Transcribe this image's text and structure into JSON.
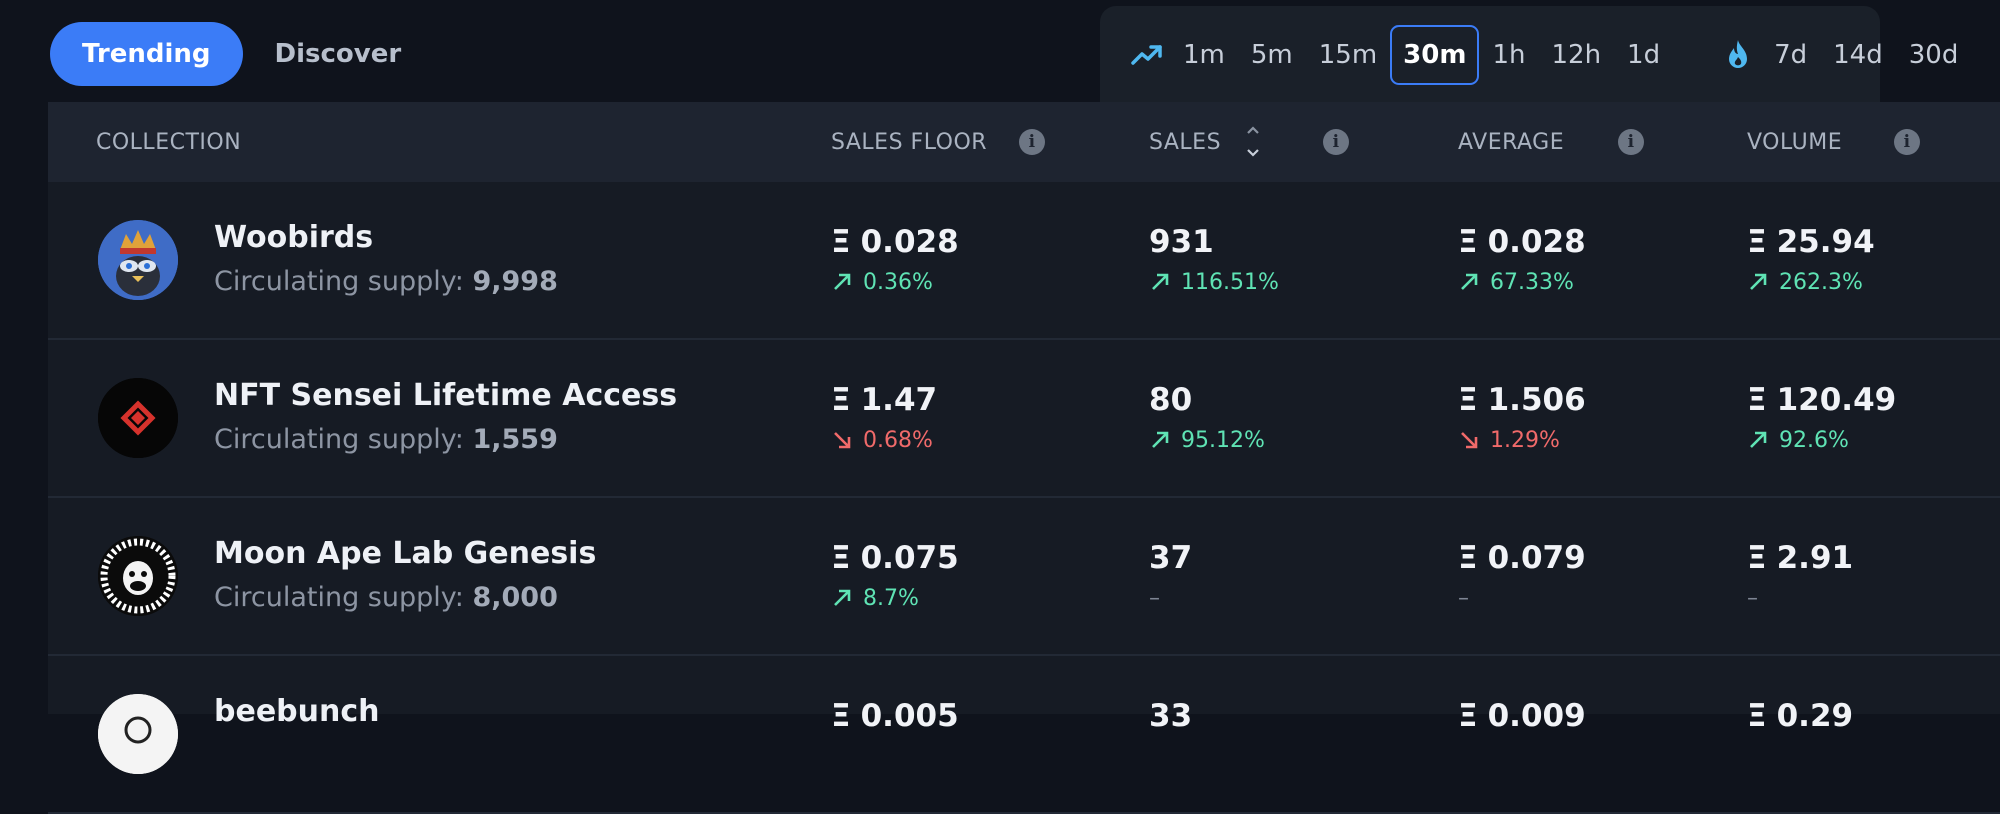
{
  "tabs": [
    {
      "label": "Trending",
      "active": true
    },
    {
      "label": "Discover",
      "active": false
    }
  ],
  "timeframes": {
    "trending_icon": "trending-up-icon",
    "hot_icon": "flame-icon",
    "short": [
      "1m",
      "5m",
      "15m",
      "30m",
      "1h",
      "12h",
      "1d"
    ],
    "long": [
      "7d",
      "14d",
      "30d"
    ],
    "selected": "30m"
  },
  "table": {
    "headers": {
      "collection": "COLLECTION",
      "sales_floor": "SALES FLOOR",
      "sales": "SALES",
      "average": "AVERAGE",
      "volume": "VOLUME"
    },
    "currency_symbol": "Ξ",
    "supply_label": "Circulating supply:",
    "rows": [
      {
        "name": "Woobirds",
        "supply": "9,998",
        "floor": "0.028",
        "floor_change": "0.36%",
        "floor_dir": "up",
        "sales": "931",
        "sales_change": "116.51%",
        "sales_dir": "up",
        "average": "0.028",
        "average_change": "67.33%",
        "average_dir": "up",
        "volume": "25.94",
        "volume_change": "262.3%",
        "volume_dir": "up"
      },
      {
        "name": "NFT Sensei Lifetime Access",
        "supply": "1,559",
        "floor": "1.47",
        "floor_change": "0.68%",
        "floor_dir": "down",
        "sales": "80",
        "sales_change": "95.12%",
        "sales_dir": "up",
        "average": "1.506",
        "average_change": "1.29%",
        "average_dir": "down",
        "volume": "120.49",
        "volume_change": "92.6%",
        "volume_dir": "up"
      },
      {
        "name": "Moon Ape Lab Genesis",
        "supply": "8,000",
        "floor": "0.075",
        "floor_change": "8.7%",
        "floor_dir": "up",
        "sales": "37",
        "sales_change": "–",
        "sales_dir": "none",
        "average": "0.079",
        "average_change": "–",
        "average_dir": "none",
        "volume": "2.91",
        "volume_change": "–",
        "volume_dir": "none"
      },
      {
        "name": "beebunch",
        "supply": "",
        "floor": "0.005",
        "floor_change": "",
        "floor_dir": "none",
        "sales": "33",
        "sales_change": "",
        "sales_dir": "none",
        "average": "0.009",
        "average_change": "",
        "average_dir": "none",
        "volume": "0.29",
        "volume_change": "",
        "volume_dir": "none"
      }
    ]
  },
  "colors": {
    "accent": "#3b7cf7",
    "up": "#5fe3b4",
    "down": "#f06a6a",
    "icon_cyan": "#4fb8f0"
  }
}
